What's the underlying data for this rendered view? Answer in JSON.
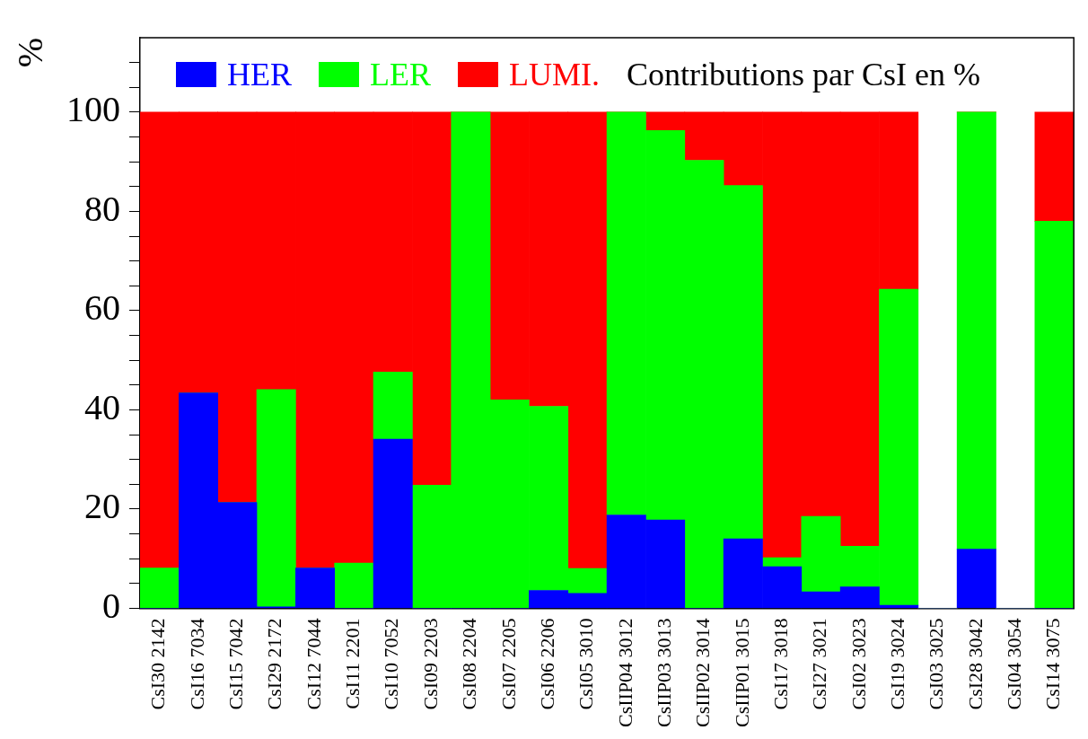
{
  "chart_data": {
    "type": "bar",
    "title": "Contributions par CsI en %",
    "ylabel": "%",
    "stacked": true,
    "legend": "top",
    "grid": false,
    "categories": [
      "CsI30 2142",
      "CsI16 7034",
      "CsI15 7042",
      "CsI29 2172",
      "CsI12 7044",
      "CsI11 2201",
      "CsI10 7052",
      "CsI09 2203",
      "CsI08 2204",
      "CsI07 2205",
      "CsI06 2206",
      "CsI05 3010",
      "CsIIP04 3012",
      "CsIIP03 3013",
      "CsIIP02 3014",
      "CsIIP01 3015",
      "CsI17 3018",
      "CsI27 3021",
      "CsI02 3023",
      "CsI19 3024",
      "CsI03 3025",
      "CsI28 3042",
      "CsI04 3054",
      "CsI14 3075"
    ],
    "series": [
      {
        "name": "HER",
        "color": "#0000ff",
        "values": [
          0,
          43.4,
          21.3,
          0.3,
          8.1,
          0,
          34.1,
          0,
          0,
          0,
          3.6,
          3.0,
          18.8,
          17.8,
          0,
          14.0,
          8.4,
          3.3,
          4.3,
          0.6,
          0,
          11.9,
          0,
          0
        ]
      },
      {
        "name": "LER",
        "color": "#00ff00",
        "values": [
          8.1,
          0,
          0,
          43.8,
          0,
          9.1,
          13.5,
          24.8,
          100,
          42.0,
          37.1,
          5.0,
          81.2,
          78.5,
          90.3,
          71.2,
          1.8,
          15.2,
          8.2,
          63.7,
          0,
          88.1,
          0,
          78.0
        ]
      },
      {
        "name": "LUMI.",
        "color": "#ff0000",
        "values": [
          91.9,
          56.6,
          78.7,
          55.9,
          91.9,
          90.9,
          52.4,
          75.2,
          0,
          58.0,
          59.3,
          92.0,
          0,
          3.7,
          9.7,
          14.8,
          89.8,
          81.5,
          87.5,
          35.7,
          0,
          0,
          0,
          22.0
        ]
      }
    ],
    "ylim": [
      0,
      115
    ],
    "yticks": [
      0,
      {
        "value": 5,
        "label": null
      },
      {
        "value": 10,
        "label": null
      },
      {
        "value": 15,
        "label": null
      },
      20,
      {
        "value": 25,
        "label": null
      },
      {
        "value": 30,
        "label": null
      },
      {
        "value": 35,
        "label": null
      },
      40,
      {
        "value": 45,
        "label": null
      },
      {
        "value": 50,
        "label": null
      },
      {
        "value": 55,
        "label": null
      },
      60,
      {
        "value": 65,
        "label": null
      },
      {
        "value": 70,
        "label": null
      },
      {
        "value": 75,
        "label": null
      },
      80,
      {
        "value": 85,
        "label": null
      },
      {
        "value": 90,
        "label": null
      },
      {
        "value": 95,
        "label": null
      },
      100,
      {
        "value": 105,
        "label": null
      },
      {
        "value": 110,
        "label": null
      }
    ]
  }
}
